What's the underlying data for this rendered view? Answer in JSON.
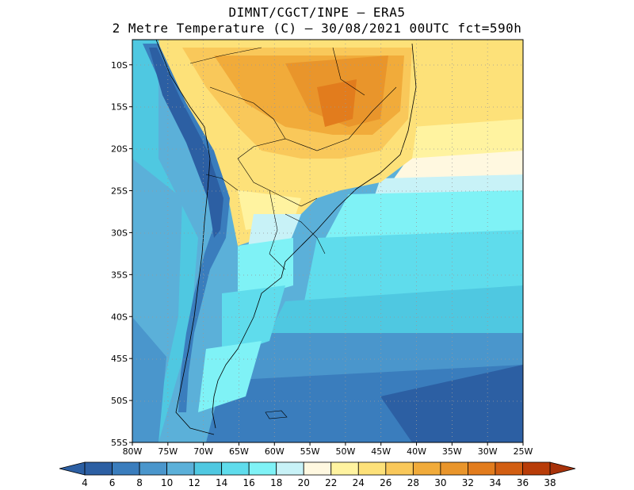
{
  "title": {
    "line1": "DIMNT/CGCT/INPE –  ERA5",
    "line2": "2 Metre Temperature (C) –  30/08/2021 00UTC fct=590h"
  },
  "axes": {
    "lon_labels": [
      "80W",
      "75W",
      "70W",
      "65W",
      "60W",
      "55W",
      "50W",
      "45W",
      "40W",
      "35W",
      "30W",
      "25W"
    ],
    "lat_labels": [
      "10S",
      "15S",
      "20S",
      "25S",
      "30S",
      "35S",
      "40S",
      "45S",
      "50S",
      "55S"
    ],
    "lon_range": [
      -80,
      -25
    ],
    "lat_range": [
      -55,
      -7
    ],
    "grid": "dotted"
  },
  "colorbar": {
    "levels": [
      "4",
      "6",
      "8",
      "10",
      "12",
      "14",
      "16",
      "18",
      "20",
      "22",
      "24",
      "26",
      "28",
      "30",
      "32",
      "34",
      "36",
      "38"
    ],
    "colors": [
      "#2c5fa3",
      "#3a7dbd",
      "#4a96cc",
      "#5bb0d9",
      "#4fc8e1",
      "#5fdcec",
      "#7ff2f6",
      "#c8f2f7",
      "#fff8e0",
      "#fff3a0",
      "#fde179",
      "#f9c85a",
      "#f1ab3a",
      "#e9952b",
      "#e27c1d",
      "#d25e12",
      "#b83c08"
    ],
    "under_color": "#2c5fa3",
    "over_color": "#a8320a"
  }
}
